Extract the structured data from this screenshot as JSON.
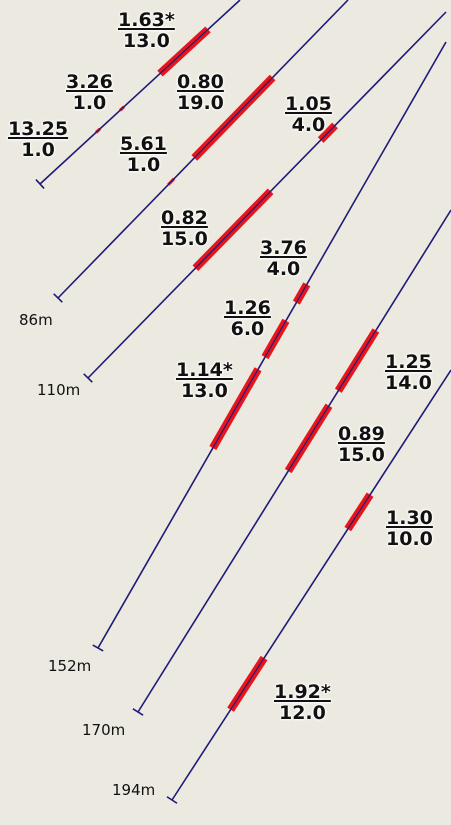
{
  "colors": {
    "background": "#ECE9E0",
    "hole": "#1E1B78",
    "interval": "#E8141C"
  },
  "holes": [
    {
      "depth_label": "",
      "intervals": [
        {
          "grade": "1.63*",
          "length": "13.0"
        },
        {
          "grade": "3.26",
          "length": "1.0"
        },
        {
          "grade": "13.25",
          "length": "1.0"
        }
      ]
    },
    {
      "depth_label": "86m",
      "intervals": [
        {
          "grade": "0.80",
          "length": "19.0"
        },
        {
          "grade": "5.61",
          "length": "1.0"
        }
      ]
    },
    {
      "depth_label": "110m",
      "intervals": [
        {
          "grade": "1.05",
          "length": "4.0"
        },
        {
          "grade": "0.82",
          "length": "15.0"
        }
      ]
    },
    {
      "depth_label": "152m",
      "intervals": [
        {
          "grade": "3.76",
          "length": "4.0"
        },
        {
          "grade": "1.26",
          "length": "6.0"
        },
        {
          "grade": "1.14*",
          "length": "13.0"
        }
      ]
    },
    {
      "depth_label": "170m",
      "intervals": [
        {
          "grade": "1.25",
          "length": "14.0"
        },
        {
          "grade": "0.89",
          "length": "15.0"
        }
      ]
    },
    {
      "depth_label": "194m",
      "intervals": [
        {
          "grade": "1.30",
          "length": "10.0"
        },
        {
          "grade": "1.92*",
          "length": "12.0"
        }
      ]
    }
  ]
}
